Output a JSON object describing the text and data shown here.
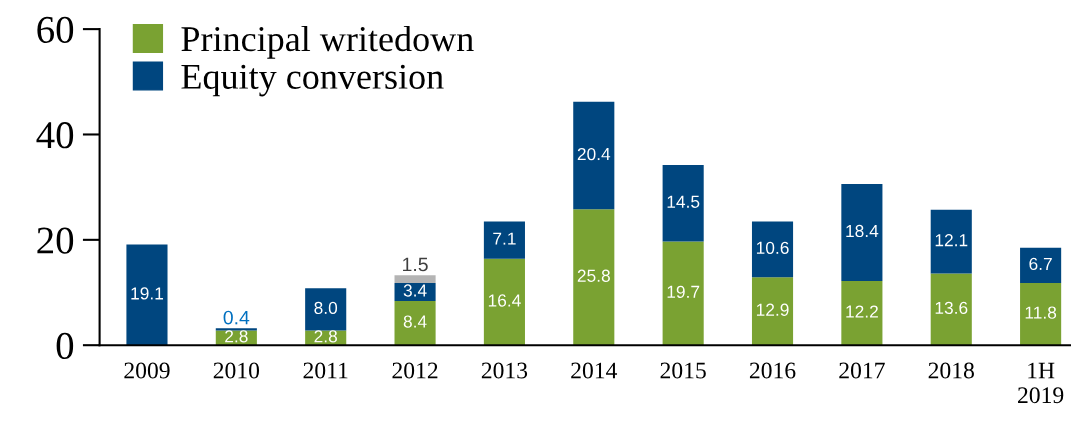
{
  "chart_data": {
    "type": "bar",
    "stacked": true,
    "categories": [
      "2009",
      "2010",
      "2011",
      "2012",
      "2013",
      "2014",
      "2015",
      "2016",
      "2017",
      "2018",
      "1H\n2019"
    ],
    "series": [
      {
        "name": "Principal writedown",
        "color": "#7aa232",
        "values": [
          null,
          2.8,
          2.8,
          8.4,
          16.4,
          25.8,
          19.7,
          12.9,
          12.2,
          13.6,
          11.8
        ],
        "value_labels": [
          null,
          "2.8",
          "2.8",
          "8.4",
          "16.4",
          "25.8",
          "19.7",
          "12.9",
          "12.2",
          "13.6",
          "11.8"
        ]
      },
      {
        "name": "Equity conversion",
        "color": "#00467f",
        "values": [
          19.1,
          0.4,
          8.0,
          3.4,
          7.1,
          20.4,
          14.5,
          10.6,
          18.4,
          12.1,
          6.7
        ],
        "value_labels": [
          "19.1",
          "0.4",
          "8.0",
          "3.4",
          "7.1",
          "20.4",
          "14.5",
          "10.6",
          "18.4",
          "12.1",
          "6.7"
        ]
      },
      {
        "color": "#b4b4b4",
        "values": [
          null,
          null,
          null,
          1.5,
          null,
          null,
          null,
          null,
          null,
          null,
          null
        ],
        "value_labels": [
          null,
          null,
          null,
          "1.5",
          null,
          null,
          null,
          null,
          null,
          null,
          null
        ]
      }
    ],
    "ylim": [
      0,
      60
    ],
    "yticks": [
      0,
      20,
      40,
      60
    ],
    "legend": "top left",
    "grid": false
  }
}
